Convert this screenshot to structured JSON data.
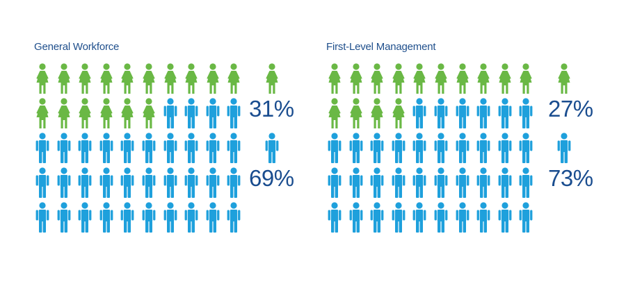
{
  "chart_data": [
    {
      "type": "pictograph",
      "title": "General Workforce",
      "total_icons": 50,
      "series": [
        {
          "name": "Women",
          "percent": 31,
          "label": "31%",
          "icons": 16,
          "color": "#6ab845"
        },
        {
          "name": "Men",
          "percent": 69,
          "label": "69%",
          "icons": 34,
          "color": "#1ea0dc"
        }
      ]
    },
    {
      "type": "pictograph",
      "title": "First-Level Management",
      "total_icons": 50,
      "series": [
        {
          "name": "Women",
          "percent": 27,
          "label": "27%",
          "icons": 14,
          "color": "#6ab845"
        },
        {
          "name": "Men",
          "percent": 73,
          "label": "73%",
          "icons": 36,
          "color": "#1ea0dc"
        }
      ]
    }
  ]
}
